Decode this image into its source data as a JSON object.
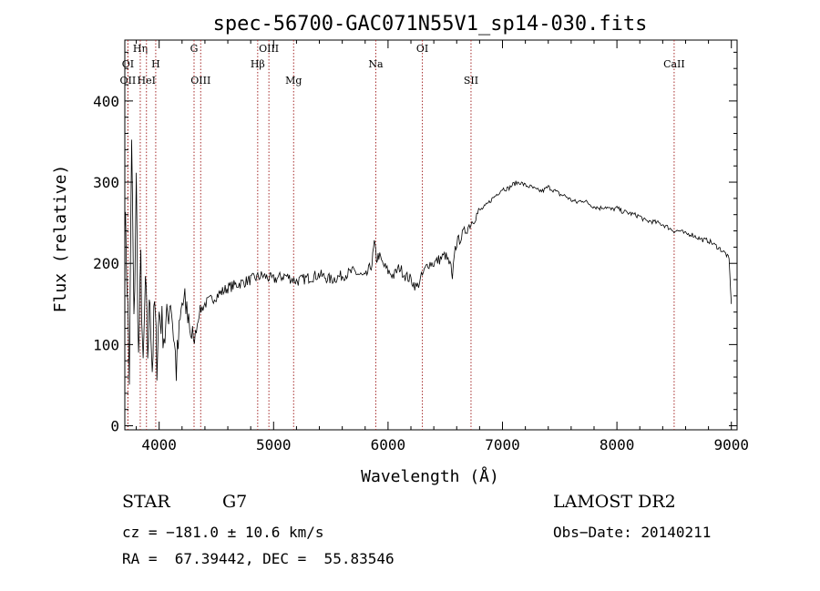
{
  "chart_data": {
    "type": "line",
    "title": "spec-56700-GAC071N55V1_sp14-030.fits",
    "xlabel": "Wavelength (Å)",
    "ylabel": "Flux (relative)",
    "xlim": [
      3700,
      9050
    ],
    "ylim": [
      -5,
      475
    ],
    "x_ticks": [
      4000,
      5000,
      6000,
      7000,
      8000,
      9000
    ],
    "y_ticks": [
      0,
      100,
      200,
      300,
      400
    ],
    "grid": false,
    "colors": {
      "line": "#000000",
      "marker_lines": "#a52a2a"
    },
    "lines": [
      {
        "name": "OI",
        "wl": 3727
      },
      {
        "name": "Hη",
        "wl": 3835
      },
      {
        "name": "OII",
        "wl": 3727
      },
      {
        "name": "HeI",
        "wl": 3889
      },
      {
        "name": "H",
        "wl": 3970
      },
      {
        "name": "G",
        "wl": 4305
      },
      {
        "name": "OIII",
        "wl": 4363
      },
      {
        "name": "Hβ",
        "wl": 4861
      },
      {
        "name": "OIII",
        "wl": 4959
      },
      {
        "name": "Mg",
        "wl": 5175
      },
      {
        "name": "Na",
        "wl": 5893
      },
      {
        "name": "OI",
        "wl": 6300
      },
      {
        "name": "SII",
        "wl": 6725
      },
      {
        "name": "CaII",
        "wl": 8500
      }
    ],
    "series": [
      {
        "x": [
          3700,
          3720,
          3740,
          3760,
          3780,
          3800,
          3820,
          3840,
          3860,
          3880,
          3900,
          3920,
          3940,
          3960,
          3980,
          4000,
          4050,
          4100,
          4150,
          4200,
          4250,
          4300,
          4350,
          4400,
          4450,
          4500,
          4600,
          4700,
          4800,
          4900,
          5000,
          5100,
          5200,
          5300,
          5400,
          5500,
          5600,
          5700,
          5800,
          5860,
          5880,
          5900,
          5920,
          5950,
          6000,
          6050,
          6100,
          6150,
          6200,
          6250,
          6300,
          6350,
          6400,
          6450,
          6500,
          6550,
          6562,
          6580,
          6600,
          6650,
          6700,
          6750,
          6800,
          6850,
          6900,
          6950,
          7000,
          7050,
          7100,
          7150,
          7200,
          7250,
          7300,
          7350,
          7400,
          7450,
          7500,
          7550,
          7600,
          7650,
          7700,
          7750,
          7800,
          7850,
          7900,
          7950,
          8000,
          8050,
          8100,
          8150,
          8200,
          8250,
          8300,
          8350,
          8400,
          8450,
          8500,
          8550,
          8600,
          8650,
          8700,
          8750,
          8800,
          8850,
          8900,
          8950,
          8980,
          9000
        ],
        "y": [
          270,
          180,
          60,
          350,
          120,
          300,
          80,
          200,
          60,
          180,
          90,
          160,
          70,
          150,
          80,
          140,
          110,
          160,
          70,
          150,
          140,
          100,
          140,
          150,
          155,
          160,
          170,
          175,
          180,
          185,
          180,
          185,
          178,
          182,
          186,
          180,
          185,
          190,
          182,
          200,
          225,
          205,
          210,
          200,
          190,
          185,
          195,
          185,
          180,
          170,
          185,
          200,
          200,
          205,
          210,
          195,
          175,
          215,
          225,
          235,
          245,
          255,
          265,
          270,
          278,
          285,
          292,
          292,
          298,
          300,
          296,
          294,
          290,
          289,
          294,
          290,
          285,
          283,
          278,
          275,
          278,
          274,
          270,
          268,
          270,
          266,
          268,
          264,
          262,
          260,
          258,
          252,
          252,
          250,
          248,
          244,
          240,
          240,
          236,
          236,
          232,
          229,
          228,
          223,
          218,
          212,
          205,
          150
        ]
      }
    ]
  },
  "info": {
    "object_class": "STAR",
    "subclass": "G7",
    "survey": "LAMOST DR2",
    "cz": "cz = −181.0 ± 10.6 km/s",
    "obs_date": "Obs−Date: 20140211",
    "coords": "RA =  67.39442, DEC =  55.83546"
  }
}
